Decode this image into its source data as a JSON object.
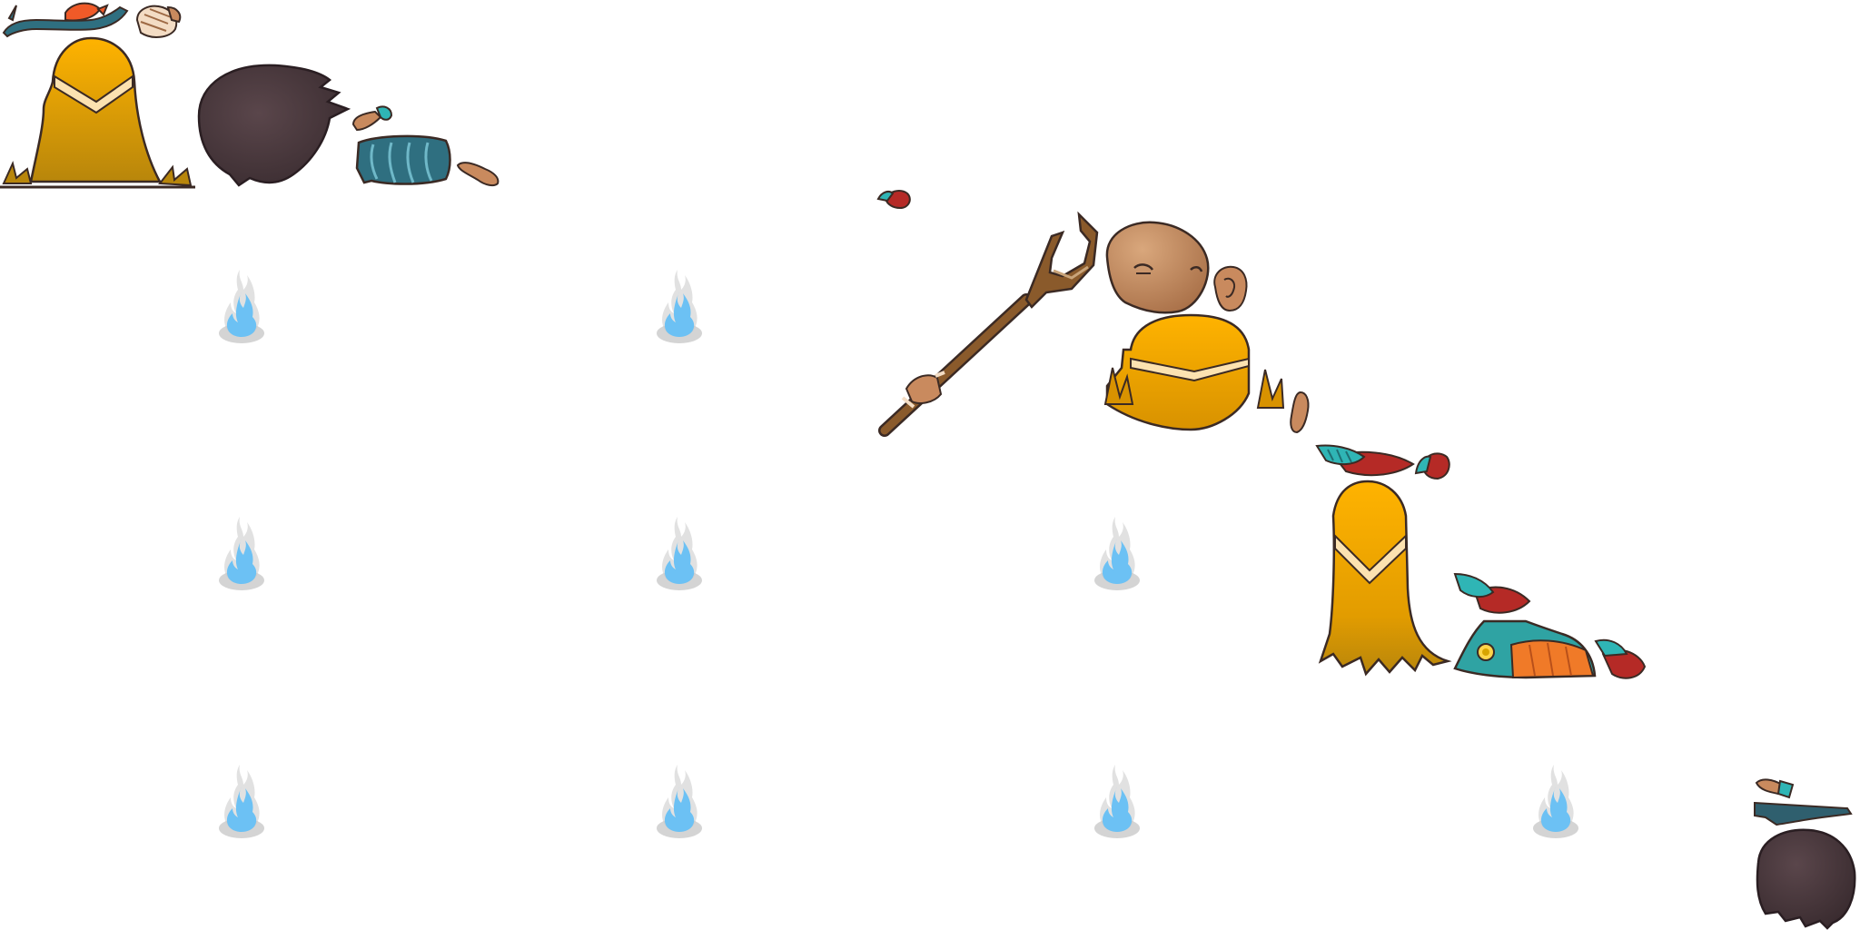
{
  "sheet": {
    "kind": "sprite-atlas",
    "background": "#ffffff"
  },
  "palette": {
    "outline": "#3b2a24",
    "robe_light": "#ffb300",
    "robe_dark": "#b8860b",
    "robe_trim": "#fce2b0",
    "skin": "#c98a5e",
    "skin_dark": "#9e6a45",
    "hair": "#4a383c",
    "teal": "#2f8f99",
    "teal_dark": "#2f5f6e",
    "feather_red": "#b52a26",
    "orange": "#f07a28",
    "wood": "#8a5a2b",
    "flame_blue": "#6cc1f4",
    "smoke_grey": "#c9c9c9"
  },
  "sprites": [
    {
      "name": "headband-with-red-feather"
    },
    {
      "name": "bandaged-hand"
    },
    {
      "name": "robe-torso-front"
    },
    {
      "name": "hair-tuft"
    },
    {
      "name": "small-arm-piece"
    },
    {
      "name": "teal-sleeve-cuff"
    },
    {
      "name": "forearm"
    },
    {
      "name": "tiny-feather"
    },
    {
      "name": "wooden-staff-with-hand"
    },
    {
      "name": "monk-head"
    },
    {
      "name": "ear"
    },
    {
      "name": "robe-skirt-wide"
    },
    {
      "name": "finger"
    },
    {
      "name": "feather-pair"
    },
    {
      "name": "small-red-feather"
    },
    {
      "name": "robe-long-back"
    },
    {
      "name": "feather-piece"
    },
    {
      "name": "decorated-boot"
    },
    {
      "name": "feather-cluster"
    },
    {
      "name": "small-hand-fragment"
    },
    {
      "name": "teal-band"
    },
    {
      "name": "hair-bun"
    }
  ],
  "blue_flames": [
    {
      "row": 1,
      "col": 1
    },
    {
      "row": 1,
      "col": 2
    },
    {
      "row": 2,
      "col": 1
    },
    {
      "row": 2,
      "col": 2
    },
    {
      "row": 2,
      "col": 3
    },
    {
      "row": 3,
      "col": 1
    },
    {
      "row": 3,
      "col": 2
    },
    {
      "row": 3,
      "col": 3
    },
    {
      "row": 3,
      "col": 4
    }
  ]
}
